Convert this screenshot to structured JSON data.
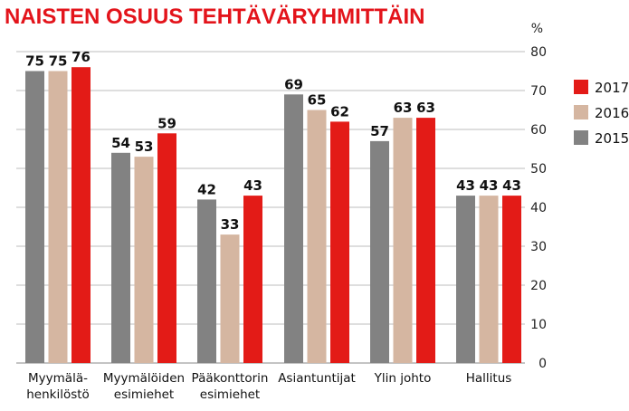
{
  "colors": {
    "title": "#e3141b",
    "2017": "#e31b17",
    "2016": "#d5b6a1",
    "2015": "#828282",
    "grid": "#bdbdbd"
  },
  "chart_data": {
    "type": "bar",
    "title": "NAISTEN OSUUS TEHTÄVÄRYHMITTÄIN",
    "ylabel": "%",
    "ylim": [
      0,
      80
    ],
    "yticks": [
      0,
      10,
      20,
      30,
      40,
      50,
      60,
      70,
      80
    ],
    "grid": true,
    "legend_position": "right",
    "categories": [
      [
        "Myymälä-",
        "henkilöstö"
      ],
      [
        "Myymälöiden",
        "esimiehet"
      ],
      [
        "Pääkonttorin",
        "esimiehet"
      ],
      [
        "Asiantuntijat"
      ],
      [
        "Ylin johto"
      ],
      [
        "Hallitus"
      ]
    ],
    "series": [
      {
        "name": "2015",
        "values": [
          75,
          54,
          42,
          69,
          57,
          43
        ]
      },
      {
        "name": "2016",
        "values": [
          75,
          53,
          33,
          65,
          63,
          43
        ]
      },
      {
        "name": "2017",
        "values": [
          76,
          59,
          43,
          62,
          63,
          43
        ]
      }
    ],
    "legend_order": [
      "2017",
      "2016",
      "2015"
    ]
  }
}
